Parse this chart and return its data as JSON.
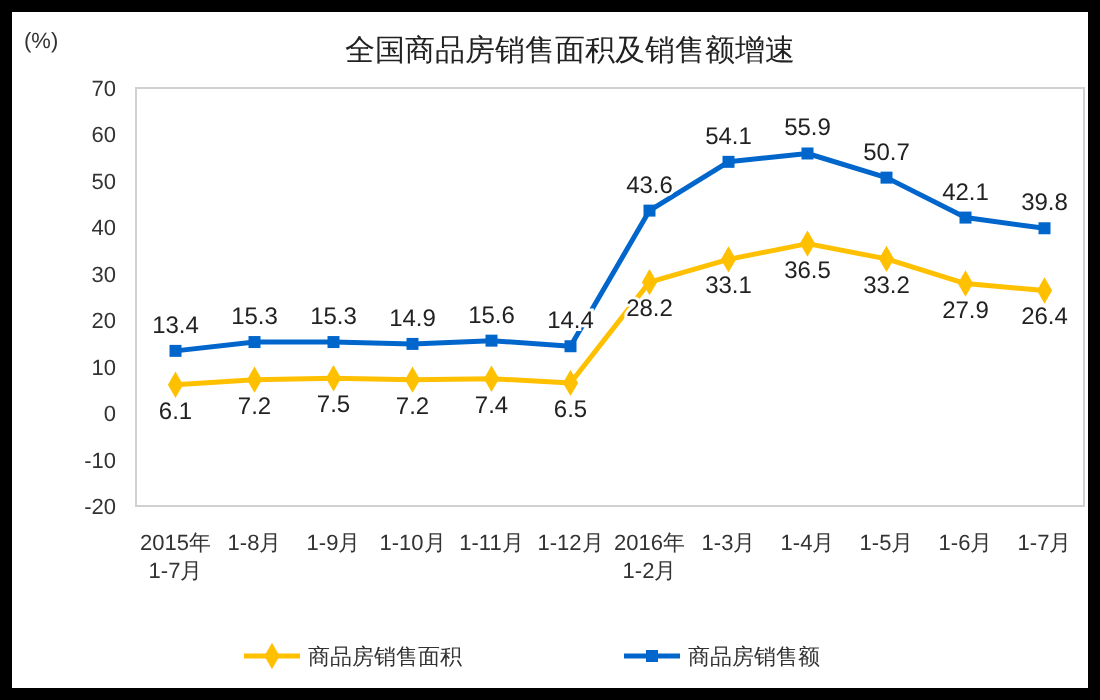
{
  "chart_data": {
    "type": "line",
    "title": "全国商品房销售面积及销售额增速",
    "ylabel": "(%)",
    "categories": [
      "2015年\n1-7月",
      "1-8月",
      "1-9月",
      "1-10月",
      "1-11月",
      "1-12月",
      "2016年\n1-2月",
      "1-3月",
      "1-4月",
      "1-5月",
      "1-6月",
      "1-7月"
    ],
    "series": [
      {
        "name": "商品房销售面积",
        "color": "#ffc000",
        "marker": "diamond",
        "values": [
          6.1,
          7.2,
          7.5,
          7.2,
          7.4,
          6.5,
          28.2,
          33.1,
          36.5,
          33.2,
          27.9,
          26.4
        ]
      },
      {
        "name": "商品房销售额",
        "color": "#0066cc",
        "marker": "square",
        "values": [
          13.4,
          15.3,
          15.3,
          14.9,
          15.6,
          14.4,
          43.6,
          54.1,
          55.9,
          50.7,
          42.1,
          39.8
        ]
      }
    ],
    "ylim": [
      -20,
      70
    ],
    "yticks": [
      -20,
      -10,
      0,
      10,
      20,
      30,
      40,
      50,
      60,
      70
    ],
    "data_labels": true,
    "grid": false,
    "legend": "bottom"
  }
}
